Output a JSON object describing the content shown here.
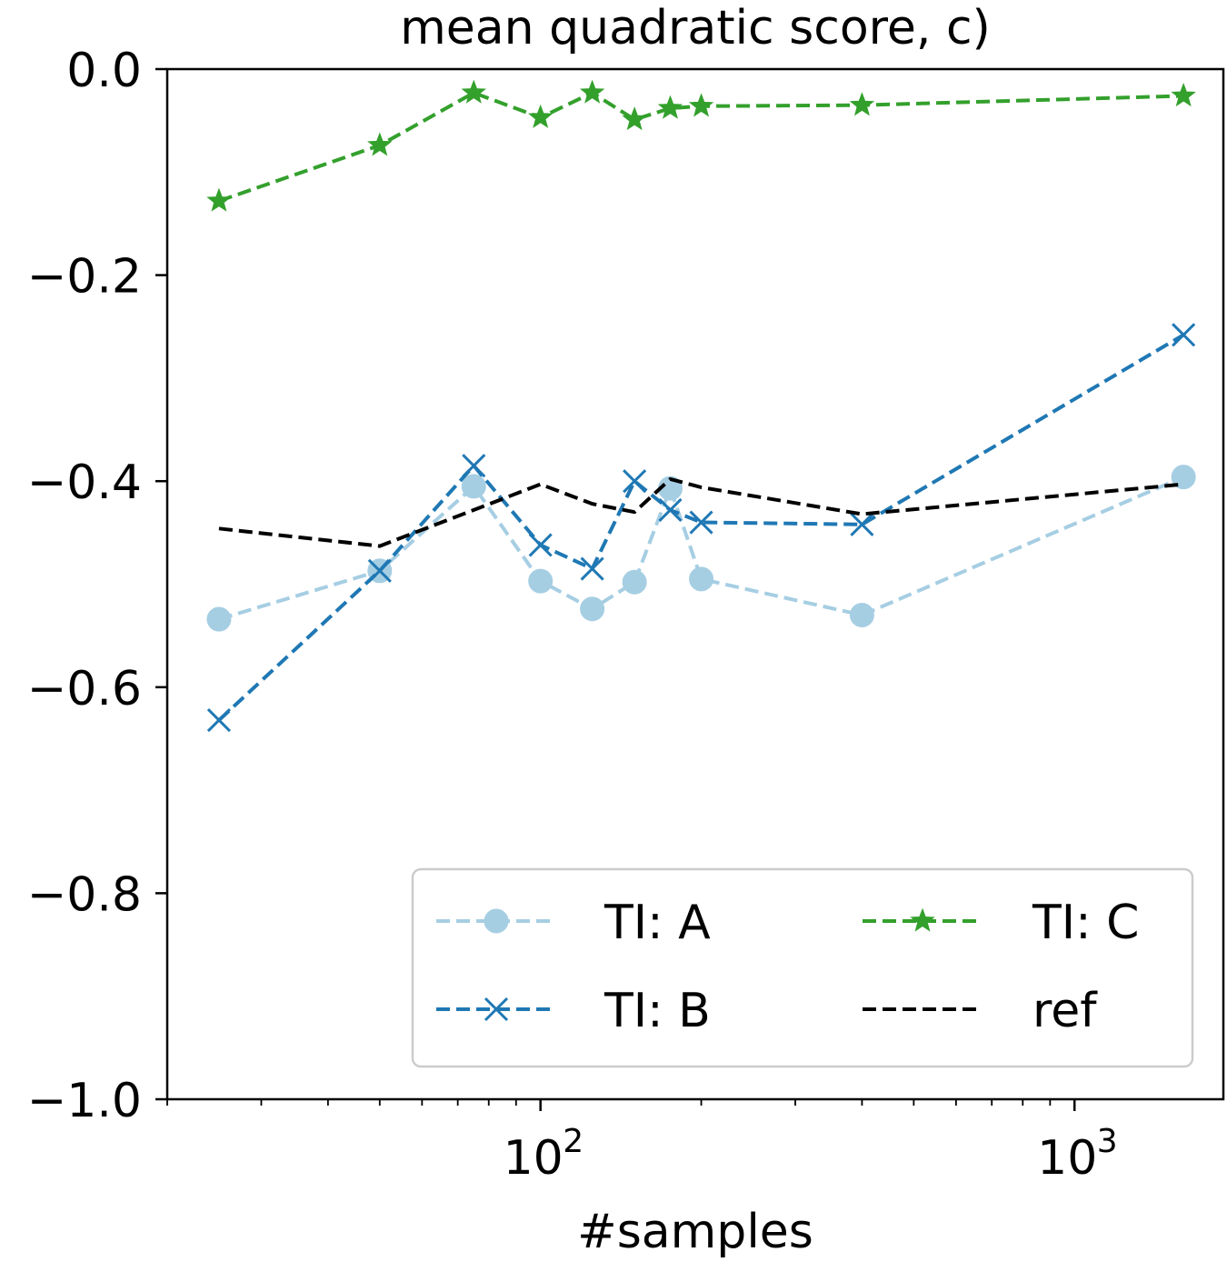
{
  "chart_data": {
    "type": "line",
    "title": "mean quadratic score, c)",
    "xlabel": "#samples",
    "ylabel": "",
    "xscale": "log",
    "xlim": [
      20,
      1900
    ],
    "ylim": [
      -1.0,
      0.0
    ],
    "x_ticks": [
      {
        "value": 100,
        "base": "10",
        "exp": "2"
      },
      {
        "value": 1000,
        "base": "10",
        "exp": "3"
      }
    ],
    "y_ticks": [
      {
        "value": 0.0,
        "label": "0.0"
      },
      {
        "value": -0.2,
        "label": "−0.2"
      },
      {
        "value": -0.4,
        "label": "−0.4"
      },
      {
        "value": -0.6,
        "label": "−0.6"
      },
      {
        "value": -0.8,
        "label": "−0.8"
      },
      {
        "value": -1.0,
        "label": "−1.0"
      }
    ],
    "grid": false,
    "legend": {
      "position": "bottom-right",
      "columns": 2
    },
    "series": [
      {
        "name": "TI: A",
        "color": "#a6cee3",
        "marker": "circle",
        "dash": "dashed",
        "x": [
          25,
          50,
          75,
          100,
          125,
          150,
          175,
          200,
          400,
          1600
        ],
        "y": [
          -0.534,
          -0.487,
          -0.405,
          -0.497,
          -0.524,
          -0.498,
          -0.407,
          -0.495,
          -0.53,
          -0.396
        ]
      },
      {
        "name": "TI: B",
        "color": "#1f78b4",
        "marker": "x",
        "dash": "dashed",
        "x": [
          25,
          50,
          75,
          100,
          125,
          150,
          175,
          200,
          400,
          1600
        ],
        "y": [
          -0.632,
          -0.487,
          -0.385,
          -0.462,
          -0.485,
          -0.4,
          -0.428,
          -0.44,
          -0.442,
          -0.258
        ]
      },
      {
        "name": "TI: C",
        "color": "#33a02c",
        "marker": "star",
        "dash": "dashed",
        "x": [
          25,
          50,
          75,
          100,
          125,
          150,
          175,
          200,
          400,
          1600
        ],
        "y": [
          -0.128,
          -0.074,
          -0.023,
          -0.047,
          -0.023,
          -0.049,
          -0.038,
          -0.036,
          -0.035,
          -0.026
        ]
      },
      {
        "name": "ref",
        "color": "#000000",
        "marker": "none",
        "dash": "dashed",
        "x": [
          25,
          50,
          75,
          100,
          125,
          150,
          175,
          200,
          400,
          1600
        ],
        "y": [
          -0.446,
          -0.463,
          -0.428,
          -0.403,
          -0.422,
          -0.43,
          -0.398,
          -0.406,
          -0.432,
          -0.403
        ]
      }
    ]
  }
}
